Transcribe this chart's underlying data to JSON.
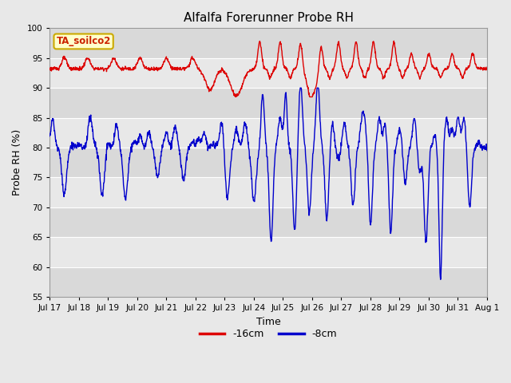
{
  "title": "Alfalfa Forerunner Probe RH",
  "xlabel": "Time",
  "ylabel": "Probe RH (%)",
  "ylim": [
    55,
    100
  ],
  "yticks": [
    55,
    60,
    65,
    70,
    75,
    80,
    85,
    90,
    95,
    100
  ],
  "bg_color": "#e8e8e8",
  "plot_bg_color": "#e8e8e8",
  "grid_color": "#ffffff",
  "label_box_facecolor": "#ffffcc",
  "label_box_edgecolor": "#ccaa00",
  "label_text": "TA_soilco2",
  "legend_labels": [
    "-16cm",
    "-8cm"
  ],
  "red_color": "#dd0000",
  "blue_color": "#0000cc",
  "x_tick_labels": [
    "Jul 17",
    "Jul 18",
    "Jul 19",
    "Jul 20",
    "Jul 21",
    "Jul 22",
    "Jul 23",
    "Jul 24",
    "Jul 25",
    "Jul 26",
    "Jul 27",
    "Jul 28",
    "Jul 29",
    "Jul 30",
    "Jul 31",
    "Aug 1"
  ],
  "title_fontsize": 11,
  "axis_label_fontsize": 9,
  "tick_fontsize": 7.5,
  "legend_fontsize": 9
}
